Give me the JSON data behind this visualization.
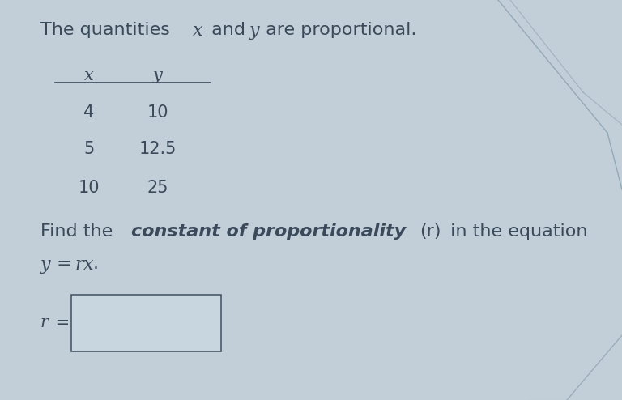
{
  "title": "The quantities ",
  "title_x": " and ",
  "title_y": " are proportional.",
  "table_headers_x": "x",
  "table_headers_y": "y",
  "table_data": [
    [
      "4",
      "10"
    ],
    [
      "5",
      "12.5"
    ],
    [
      "10",
      "25"
    ]
  ],
  "find_text_normal1": "Find the ",
  "find_text_bold_italic": "constant of proportionality ",
  "find_text_r_paren": "(r)",
  "find_text_normal2": " in the equation",
  "equation_line": "y = rx.",
  "answer_label": "r =",
  "bg_color": "#c2cfd9",
  "text_color": "#3a4a5a",
  "input_box_bg": "#c8d6e0",
  "input_box_edge": "#4a5a6a",
  "deco_color": "#8a9faf",
  "font_size_title": 16,
  "font_size_table_header": 15,
  "font_size_table_data": 15,
  "font_size_body": 16,
  "font_size_answer": 15
}
